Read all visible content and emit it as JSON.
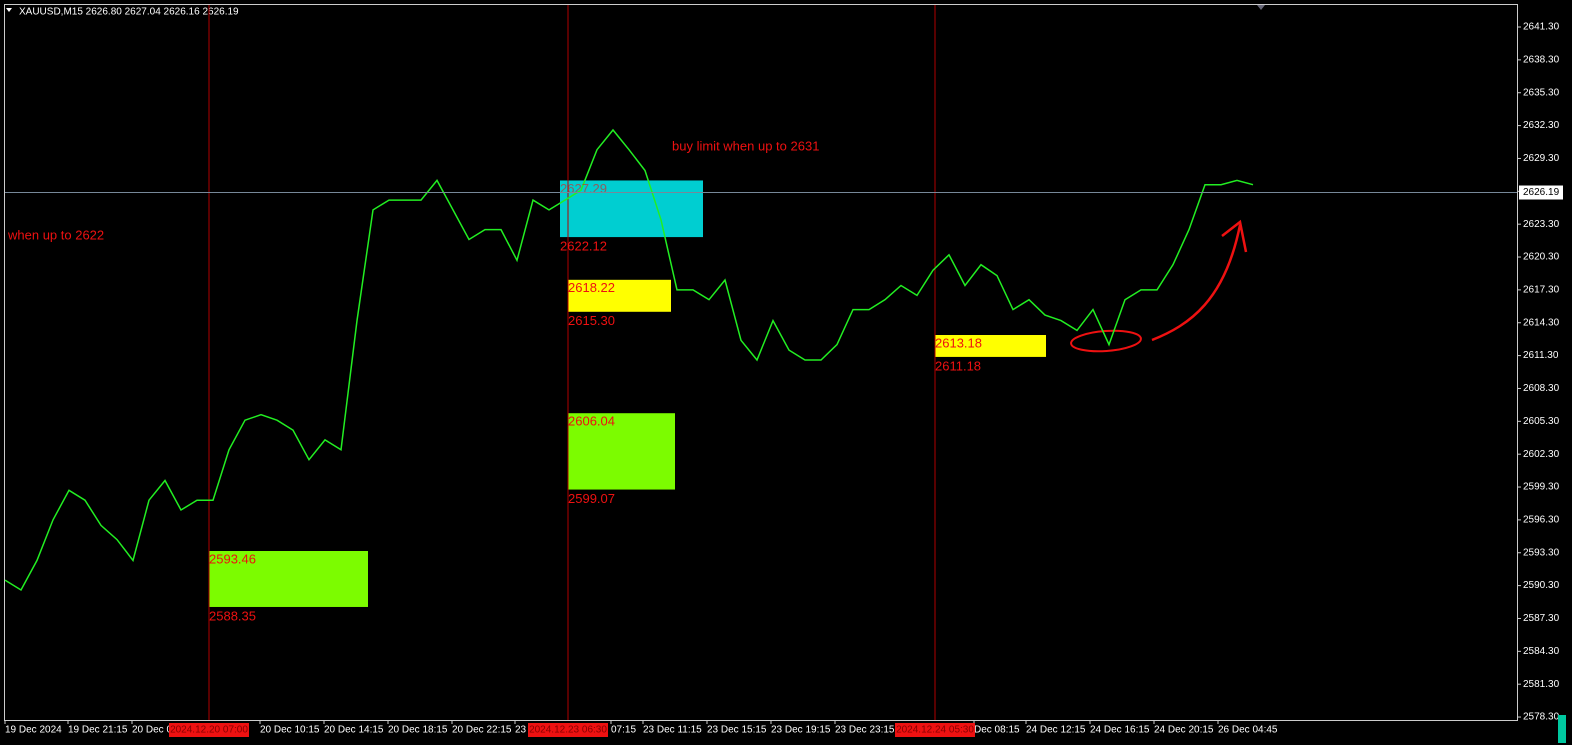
{
  "chart_data": {
    "type": "line",
    "title": "XAUUSD,M15  2626.80 2627.04 2626.16 2626.19",
    "x": [
      0,
      4,
      8,
      12,
      16,
      20,
      24,
      28,
      32,
      36,
      40,
      44,
      48,
      52,
      56,
      60,
      64,
      68,
      72,
      76,
      80,
      84,
      88,
      92,
      96,
      100,
      104,
      108,
      112,
      116,
      120,
      124,
      128,
      132,
      136,
      140,
      144,
      148,
      152,
      156,
      160,
      164,
      168,
      172,
      176,
      180,
      184,
      188,
      192,
      196,
      200,
      204,
      208,
      212,
      216,
      220,
      224,
      228,
      232,
      236,
      240,
      244,
      248,
      252,
      256,
      260,
      264,
      268,
      272,
      276,
      280,
      284,
      288,
      292,
      296,
      300,
      304,
      308,
      312
    ],
    "series": [
      {
        "color": "#22ee22",
        "values": [
          2590.8,
          2589.9,
          2592.6,
          2596.3,
          2599.0,
          2598.1,
          2595.8,
          2594.5,
          2592.6,
          2598.1,
          2599.9,
          2597.2,
          2598.1,
          2598.1,
          2602.7,
          2605.4,
          2605.9,
          2605.4,
          2604.5,
          2601.8,
          2603.6,
          2602.7,
          2614.5,
          2624.6,
          2625.5,
          2625.5,
          2625.5,
          2627.3,
          2624.6,
          2621.9,
          2622.8,
          2622.8,
          2620.0,
          2625.5,
          2624.6,
          2625.5,
          2626.4,
          2630.1,
          2631.9,
          2630.1,
          2628.2,
          2623.7,
          2617.3,
          2617.3,
          2616.4,
          2618.2,
          2612.7,
          2610.9,
          2614.5,
          2611.8,
          2610.9,
          2610.9,
          2612.3,
          2615.5,
          2615.5,
          2616.4,
          2617.7,
          2616.8,
          2619.1,
          2620.5,
          2617.7,
          2619.6,
          2618.6,
          2615.5,
          2616.4,
          2615.0,
          2614.5,
          2613.6,
          2615.5,
          2612.3,
          2616.4,
          2617.3,
          2617.3,
          2619.6,
          2622.8,
          2626.9,
          2626.9,
          2627.3,
          2626.9
        ]
      }
    ],
    "xlim": [
      0,
      378
    ],
    "ylim": [
      2578.03,
      2643.31
    ],
    "yticks": [
      {
        "value": 2641.3,
        "label": "2641.30"
      },
      {
        "value": 2638.3,
        "label": "2638.30"
      },
      {
        "value": 2635.3,
        "label": "2635.30"
      },
      {
        "value": 2632.3,
        "label": "2632.30"
      },
      {
        "value": 2629.3,
        "label": "2629.30"
      },
      {
        "value": 2626.3,
        "label": "2626.30"
      },
      {
        "value": 2623.3,
        "label": "2623.30"
      },
      {
        "value": 2620.3,
        "label": "2620.30"
      },
      {
        "value": 2617.3,
        "label": "2617.30"
      },
      {
        "value": 2614.3,
        "label": "2614.30"
      },
      {
        "value": 2611.3,
        "label": "2611.30"
      },
      {
        "value": 2608.3,
        "label": "2608.30"
      },
      {
        "value": 2605.3,
        "label": "2605.30"
      },
      {
        "value": 2602.3,
        "label": "2602.30"
      },
      {
        "value": 2599.3,
        "label": "2599.30"
      },
      {
        "value": 2596.3,
        "label": "2596.30"
      },
      {
        "value": 2593.3,
        "label": "2593.30"
      },
      {
        "value": 2590.3,
        "label": "2590.30"
      },
      {
        "value": 2587.3,
        "label": "2587.30"
      },
      {
        "value": 2584.3,
        "label": "2584.30"
      },
      {
        "value": 2581.3,
        "label": "2581.30"
      },
      {
        "value": 2578.3,
        "label": "2578.30"
      }
    ],
    "xticks": [
      {
        "value": 0,
        "label": "19 Dec 2024"
      },
      {
        "value": 15.75,
        "label": "19 Dec 21:15"
      },
      {
        "value": 31.75,
        "label": "20 Dec 0"
      },
      {
        "value": 63.75,
        "label": "20 Dec 10:15"
      },
      {
        "value": 79.75,
        "label": "20 Dec 14:15"
      },
      {
        "value": 95.75,
        "label": "20 Dec 18:15"
      },
      {
        "value": 111.75,
        "label": "20 Dec 22:15"
      },
      {
        "value": 127.5,
        "label": "23"
      },
      {
        "value": 151.5,
        "label": "07:15"
      },
      {
        "value": 159.5,
        "label": "23 Dec 11:15"
      },
      {
        "value": 175.5,
        "label": "23 Dec 15:15"
      },
      {
        "value": 191.5,
        "label": "23 Dec 19:15"
      },
      {
        "value": 207.5,
        "label": "23 Dec 23:15"
      },
      {
        "value": 242.25,
        "label": "Dec 08:15"
      },
      {
        "value": 255.25,
        "label": "24 Dec 12:15"
      },
      {
        "value": 271.25,
        "label": "24 Dec 16:15"
      },
      {
        "value": 287.25,
        "label": "24 Dec 20:15"
      },
      {
        "value": 303.25,
        "label": "26 Dec 04:45"
      }
    ],
    "markers": [
      {
        "x": 51,
        "label": "2024.12.20 07:00"
      },
      {
        "x": 140.75,
        "label": "2024.12.23 06:30"
      },
      {
        "x": 232.5,
        "label": "2024.12.24 05:30"
      }
    ],
    "zones": [
      {
        "start": 51,
        "end": 90.75,
        "top": {
          "value": 2593.46,
          "label": "2593.46"
        },
        "bottom": {
          "value": 2588.35,
          "label": "2588.35"
        },
        "color": "#7cfc00"
      },
      {
        "start": 140.75,
        "end": 167.5,
        "top": {
          "value": 2606.04,
          "label": "2606.04"
        },
        "bottom": {
          "value": 2599.07,
          "label": "2599.07"
        },
        "color": "#7cfc00"
      },
      {
        "start": 140.75,
        "end": 166.5,
        "top": {
          "value": 2618.22,
          "label": "2618.22"
        },
        "bottom": {
          "value": 2615.3,
          "label": "2615.30"
        },
        "color": "#ffff00"
      },
      {
        "start": 138.75,
        "end": 174.5,
        "top": {
          "value": 2627.29,
          "label": "2627.29"
        },
        "bottom": {
          "value": 2622.12,
          "label": "2622.12"
        },
        "color": "#00ced1"
      },
      {
        "start": 232.5,
        "end": 260.25,
        "top": {
          "value": 2613.18,
          "label": "2613.18"
        },
        "bottom": {
          "value": 2611.18,
          "label": "2611.18"
        },
        "color": "#ffff00"
      }
    ],
    "annotations": [
      "when up to 2622",
      "buy limit when up to 2631"
    ],
    "current_price": 2626.19
  }
}
